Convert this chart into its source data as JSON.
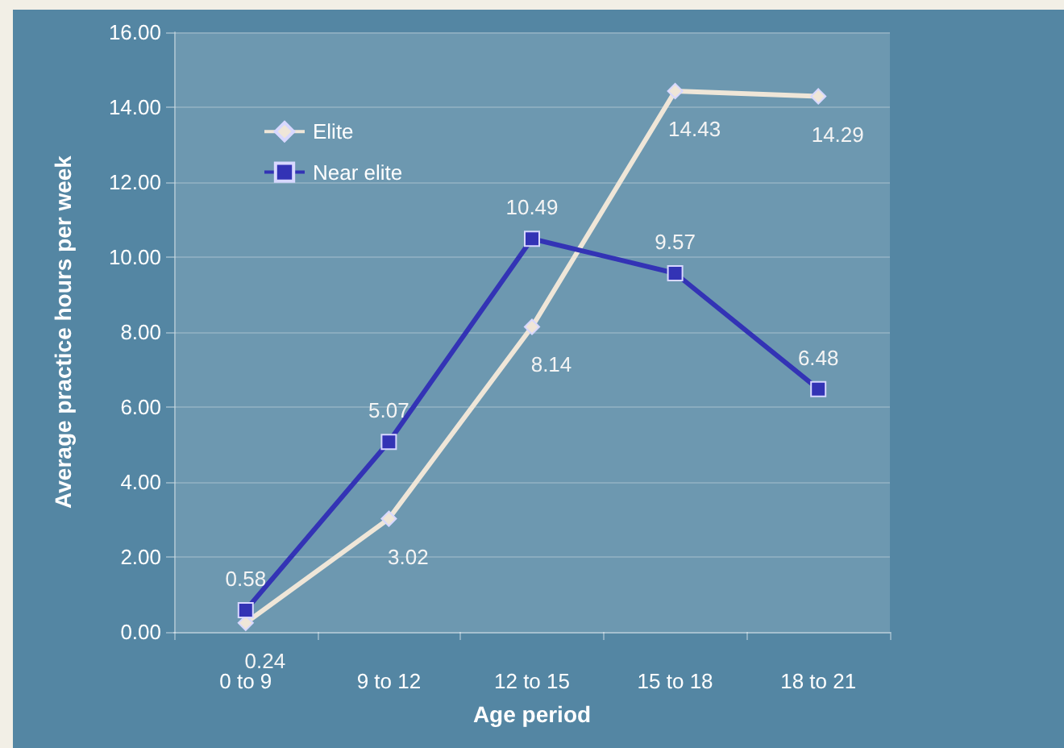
{
  "chart_data": {
    "type": "line",
    "xlabel": "Age period",
    "ylabel": "Average practice hours per week",
    "categories": [
      "0 to 9",
      "9 to 12",
      "12 to 15",
      "15 to 18",
      "18 to 21"
    ],
    "series": [
      {
        "name": "Elite",
        "color": "#efe6d8",
        "marker": "diamond",
        "values": [
          0.24,
          3.02,
          8.14,
          14.43,
          14.29
        ]
      },
      {
        "name": "Near elite",
        "color": "#3333b5",
        "marker": "square",
        "values": [
          0.58,
          5.07,
          10.49,
          9.57,
          6.48
        ]
      }
    ],
    "ylim": [
      0,
      16
    ],
    "yticks": [
      {
        "value": 0,
        "label": "0.00"
      },
      {
        "value": 2,
        "label": "2.00"
      },
      {
        "value": 4,
        "label": "4.00"
      },
      {
        "value": 6,
        "label": "6.00"
      },
      {
        "value": 8,
        "label": "8.00"
      },
      {
        "value": 10,
        "label": "10.00"
      },
      {
        "value": 12,
        "label": "12.00"
      },
      {
        "value": 14,
        "label": "14.00"
      },
      {
        "value": 16,
        "label": "16.00"
      }
    ],
    "grid": "y",
    "legend": "top left",
    "data_labels": true
  }
}
